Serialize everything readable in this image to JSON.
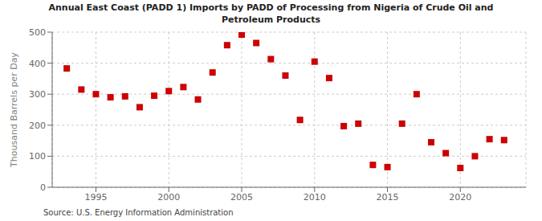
{
  "chart_data": {
    "type": "scatter",
    "title": "Annual East Coast (PADD 1) Imports by PADD of Processing from Nigeria of Crude Oil and\nPetroleum Products",
    "ylabel": "Thousand Barrels per Day",
    "annotations": [
      "Source: U.S. Energy Information Administration"
    ],
    "color": "#cc0000",
    "marker": "square",
    "grid": true,
    "xlim": [
      1992,
      2024.5
    ],
    "ylim": [
      0,
      500
    ],
    "xticks": [
      1995,
      2000,
      2005,
      2010,
      2015,
      2020
    ],
    "yticks": [
      0,
      100,
      200,
      300,
      400,
      500
    ],
    "x": [
      1993,
      1994,
      1995,
      1996,
      1997,
      1998,
      1999,
      2000,
      2001,
      2002,
      2003,
      2004,
      2005,
      2006,
      2007,
      2008,
      2009,
      2010,
      2011,
      2012,
      2013,
      2014,
      2015,
      2016,
      2017,
      2018,
      2019,
      2020,
      2021,
      2022,
      2023
    ],
    "values": [
      383,
      315,
      300,
      290,
      293,
      258,
      295,
      310,
      323,
      283,
      370,
      458,
      492,
      465,
      413,
      360,
      217,
      405,
      352,
      197,
      205,
      72,
      65,
      205,
      300,
      145,
      110,
      62,
      100,
      155,
      152
    ]
  }
}
